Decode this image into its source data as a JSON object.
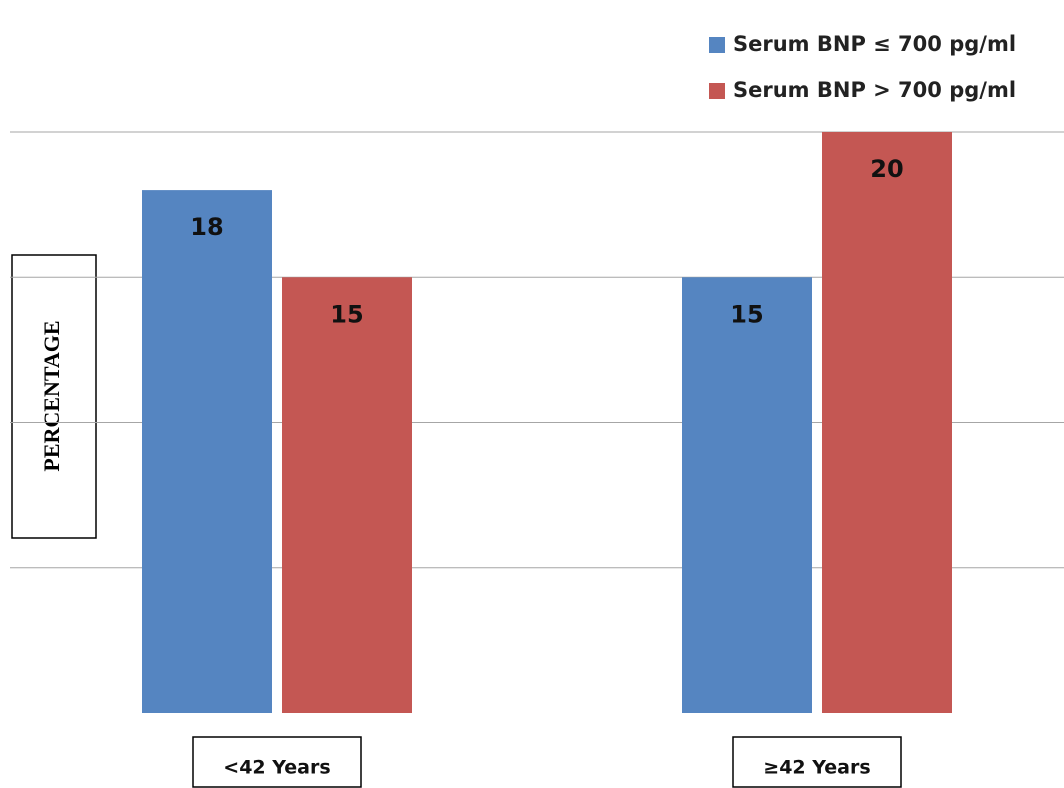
{
  "chart_data": {
    "type": "bar",
    "y_label": "PERCENTAGE",
    "categories": [
      "<42 Years",
      "≥42 Years"
    ],
    "series": [
      {
        "name": "Serum BNP ≤ 700 pg/ml",
        "color": "#5585c1",
        "values": [
          18,
          15
        ]
      },
      {
        "name": "Serum BNP > 700 pg/ml",
        "color": "#c45753",
        "values": [
          15,
          20
        ]
      }
    ],
    "ylim": [
      0,
      20
    ],
    "yticks": [
      5,
      10,
      15,
      20
    ],
    "grid": true
  }
}
